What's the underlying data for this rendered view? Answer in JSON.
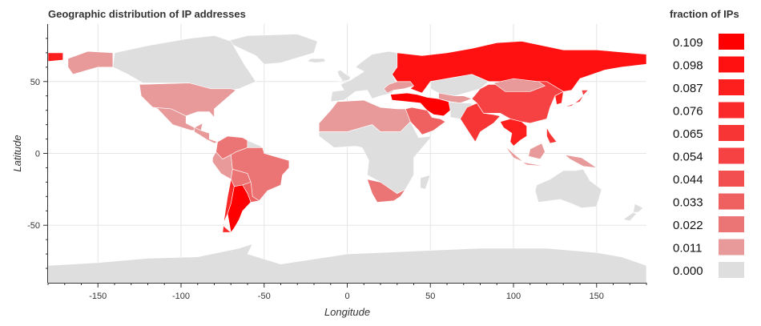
{
  "chart_data": {
    "type": "choropleth",
    "title": "Geographic distribution of IP addresses",
    "xlabel": "Longitude",
    "ylabel": "Latitude",
    "xlim": [
      -180,
      180
    ],
    "ylim": [
      -90,
      90
    ],
    "x_ticks": [
      -150,
      -100,
      -50,
      0,
      50,
      100,
      150
    ],
    "y_ticks": [
      -50,
      0,
      50
    ],
    "grid": true,
    "legend": {
      "title": "fraction of IPs",
      "placement": "right",
      "entries": [
        {
          "label": "0.109",
          "color": "#ff0000"
        },
        {
          "label": "0.098",
          "color": "#ff1111"
        },
        {
          "label": "0.087",
          "color": "#fd1e1e"
        },
        {
          "label": "0.076",
          "color": "#fb2a2a"
        },
        {
          "label": "0.065",
          "color": "#f83535"
        },
        {
          "label": "0.054",
          "color": "#f64242"
        },
        {
          "label": "0.044",
          "color": "#f25050"
        },
        {
          "label": "0.033",
          "color": "#ef6060"
        },
        {
          "label": "0.022",
          "color": "#eb7575"
        },
        {
          "label": "0.011",
          "color": "#e89a9a"
        },
        {
          "label": "0.000",
          "color": "#dedede"
        }
      ]
    }
  }
}
